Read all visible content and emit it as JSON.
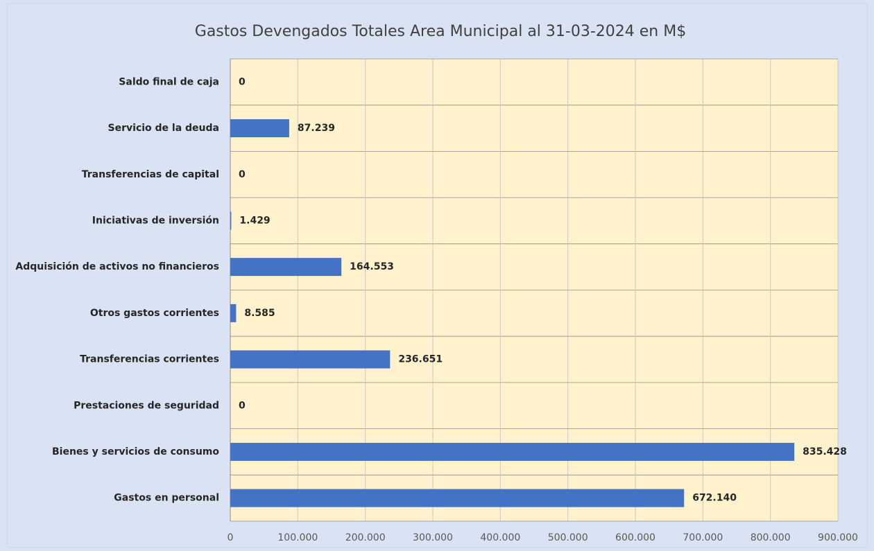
{
  "chart_data": {
    "type": "hbar",
    "title": "Gastos Devengados Totales Area Municipal al 31-03-2024 en M$",
    "categories": [
      "Saldo final de caja",
      "Servicio de la deuda",
      "Transferencias de capital",
      "Iniciativas de inversión",
      "Adquisición de activos no financieros",
      "Otros gastos corrientes",
      "Transferencias corrientes",
      "Prestaciones de seguridad",
      "Bienes y servicios de consumo",
      "Gastos en personal"
    ],
    "values": [
      0,
      87239,
      0,
      1429,
      164553,
      8585,
      236651,
      0,
      835428,
      672140
    ],
    "value_labels": [
      "0",
      "87.239",
      "0",
      "1.429",
      "164.553",
      "8.585",
      "236.651",
      "0",
      "835.428",
      "672.140"
    ],
    "color": "#4472c4",
    "xlim": [
      0,
      900000
    ],
    "xticks": [
      0,
      {
        "value": 100000,
        "label": "100.000"
      },
      {
        "value": 200000,
        "label": "200.000"
      },
      {
        "value": 300000,
        "label": "300.000"
      },
      {
        "value": 400000,
        "label": "400.000"
      },
      {
        "value": 500000,
        "label": "500.000"
      },
      {
        "value": 600000,
        "label": "600.000"
      },
      {
        "value": 700000,
        "label": "700.000"
      },
      {
        "value": 800000,
        "label": "800.000"
      },
      {
        "value": 900000,
        "label": "900.000"
      }
    ],
    "grid": true
  }
}
